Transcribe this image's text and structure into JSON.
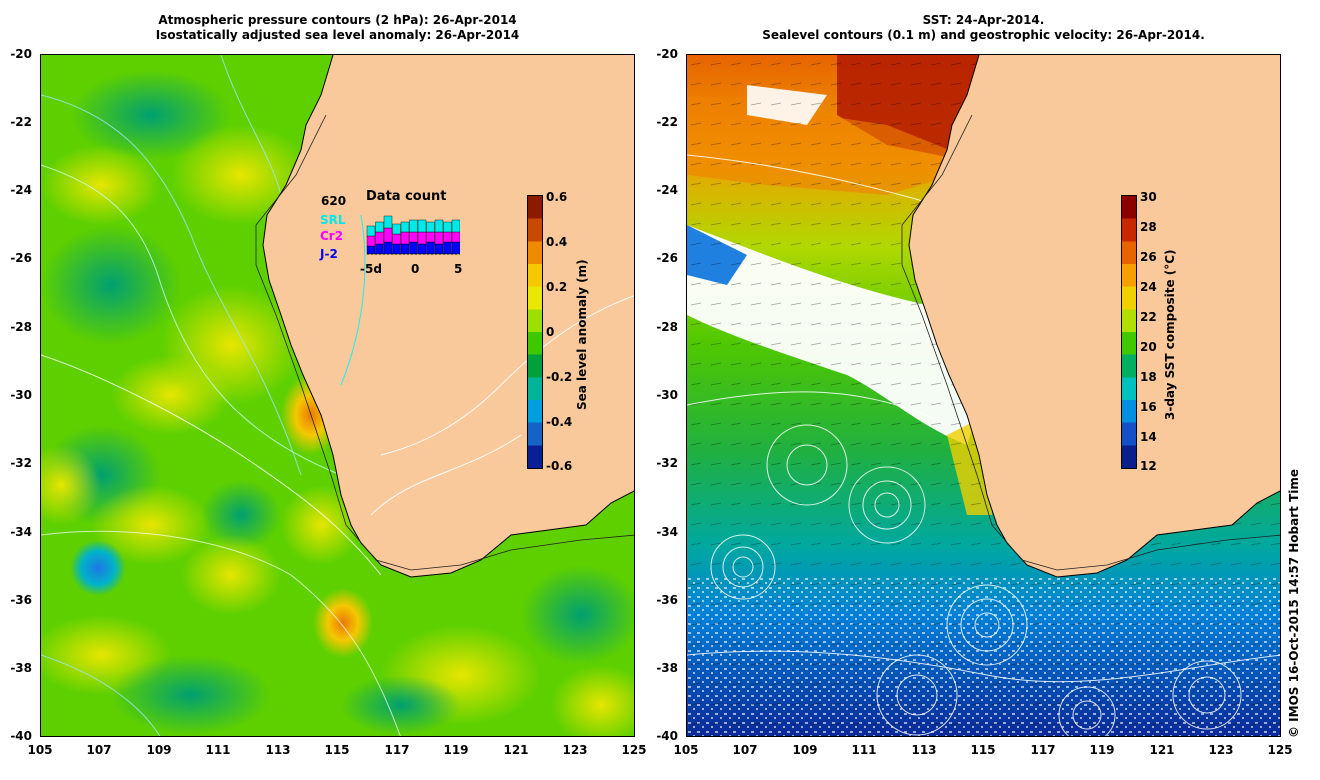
{
  "left_panel": {
    "title_line1": "Atmospheric pressure contours (2 hPa): 26-Apr-2014",
    "title_line2": "Isostatically adjusted sea level anomaly: 26-Apr-2014",
    "colorbar": {
      "label": "Sea level anomaly (m)",
      "ticks": [
        "0.6",
        "0.4",
        "0.2",
        "0",
        "-0.2",
        "-0.4",
        "-0.6"
      ],
      "colors": [
        "#8b1a00",
        "#c84a00",
        "#f08a00",
        "#f5c800",
        "#e8e800",
        "#9be000",
        "#3ec800",
        "#00a03c",
        "#00b49a",
        "#00a0e0",
        "#1464c8",
        "#0a1e96"
      ]
    },
    "data_count": {
      "title": "Data count",
      "total": "620",
      "series": [
        "SRL",
        "Cr2",
        "J-2"
      ],
      "series_colors": [
        "#00e8e8",
        "#ff00ff",
        "#0000ff"
      ],
      "x_ticks": [
        "-5d",
        "0",
        "5"
      ]
    }
  },
  "right_panel": {
    "title_line1": "SST: 24-Apr-2014.",
    "title_line2": "Sealevel contours (0.1 m) and geostrophic velocity: 26-Apr-2014.",
    "colorbar": {
      "label": "3-day SST composite (°C)",
      "ticks": [
        "30",
        "28",
        "26",
        "24",
        "22",
        "20",
        "18",
        "16",
        "14",
        "12"
      ],
      "colors": [
        "#8b0000",
        "#c82800",
        "#e86400",
        "#f5a000",
        "#f0d000",
        "#b0e000",
        "#40c800",
        "#00b060",
        "#00c0c0",
        "#0090e0",
        "#1450c8",
        "#0a1e8c"
      ]
    }
  },
  "axes": {
    "y_ticks": [
      "-20",
      "-22",
      "-24",
      "-26",
      "-28",
      "-30",
      "-32",
      "-34",
      "-36",
      "-38",
      "-40"
    ],
    "x_ticks": [
      "105",
      "107",
      "109",
      "111",
      "113",
      "115",
      "117",
      "119",
      "121",
      "123",
      "125"
    ]
  },
  "credit": "© IMOS 16-Oct-2015 14:57 Hobart Time",
  "land_color": "#f9c89b"
}
